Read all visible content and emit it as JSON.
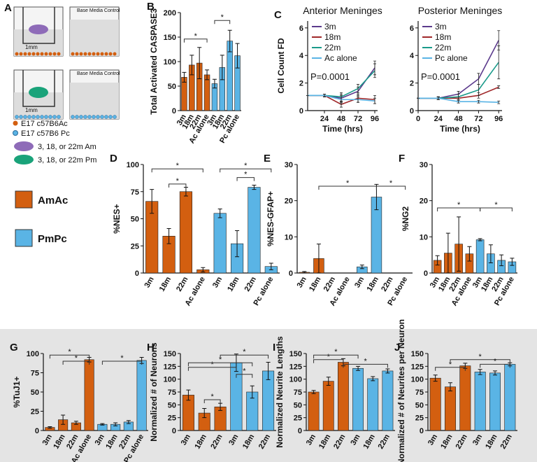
{
  "panel_a": {
    "label": "A",
    "control_1": "Base Media Control",
    "control_2": "Base Media Control",
    "scale_1": "1mm",
    "scale_2": "1mm",
    "key_ac": "E17 c57B6Ac",
    "key_pc": "E17 c57B6 Pc",
    "key_am": "3, 18, or 22m Am",
    "key_pm": "3, 18, or 22m Pm"
  },
  "legend": [
    {
      "name": "AmAc",
      "color": "#d35f10"
    },
    {
      "name": "PmPc",
      "color": "#5ab4e5"
    }
  ],
  "chart_data": [
    {
      "type": "bar",
      "label": "B",
      "ylabel": "Total Activated CASPASE3",
      "categories": [
        "3m",
        "18m",
        "22m",
        "Ac alone",
        "3m",
        "18m",
        "22m",
        "Pc alone"
      ],
      "values": [
        68,
        93,
        97,
        73,
        55,
        88,
        142,
        112
      ],
      "errors": [
        10,
        20,
        32,
        10,
        9,
        25,
        22,
        25
      ],
      "colors": [
        "#d35f10",
        "#d35f10",
        "#d35f10",
        "#d35f10",
        "#5ab4e5",
        "#5ab4e5",
        "#5ab4e5",
        "#5ab4e5"
      ],
      "ylim": [
        0,
        200
      ],
      "yticks": [
        0,
        50,
        100,
        150,
        200
      ],
      "annotations": [
        "*",
        "*"
      ]
    },
    {
      "type": "line",
      "label": "C",
      "title": "Anterior Meninges",
      "ylabel": "Cell Count FD",
      "xlabel": "Time (hrs)",
      "x": [
        0,
        24,
        48,
        72,
        96
      ],
      "xlim": [
        0,
        100
      ],
      "xticks": [
        24,
        48,
        72,
        96
      ],
      "ylim": [
        0,
        6.5
      ],
      "yticks": [
        0,
        2,
        4,
        6
      ],
      "annotation": "P=0.0001",
      "series": [
        {
          "name": "3m",
          "color": "#5b3a8c",
          "values": [
            1.1,
            1.1,
            0.9,
            1.4,
            3.1
          ],
          "errors": [
            0,
            0.1,
            0.3,
            0.3,
            0.5
          ]
        },
        {
          "name": "18m",
          "color": "#a0282a",
          "values": [
            1.1,
            1.1,
            0.45,
            0.9,
            0.8
          ],
          "errors": [
            0,
            0.1,
            0.2,
            0.3,
            0.3
          ]
        },
        {
          "name": "22m",
          "color": "#1a9a8a",
          "values": [
            1.1,
            1.1,
            1.0,
            1.6,
            2.9
          ],
          "errors": [
            0,
            0.1,
            0.3,
            0.3,
            0.5
          ]
        },
        {
          "name": "Ac alone",
          "color": "#5ab4e5",
          "values": [
            1.1,
            1.1,
            0.8,
            0.8,
            0.7
          ],
          "errors": [
            0,
            0.1,
            0.3,
            0.2,
            0.2
          ]
        }
      ]
    },
    {
      "type": "line",
      "title": "Posterior Meninges",
      "xlabel": "Time (hrs)",
      "x": [
        0,
        24,
        48,
        72,
        96
      ],
      "xlim": [
        0,
        100
      ],
      "xticks": [
        0,
        24,
        48,
        72,
        96
      ],
      "ylim": [
        0,
        6.5
      ],
      "yticks": [
        0,
        2,
        4,
        6
      ],
      "annotation": "P=0.0001",
      "series": [
        {
          "name": "3m",
          "color": "#5b3a8c",
          "values": [
            0.9,
            0.9,
            1.2,
            2.3,
            5.1
          ],
          "errors": [
            0,
            0.1,
            0.2,
            0.4,
            0.7
          ]
        },
        {
          "name": "18m",
          "color": "#a0282a",
          "values": [
            0.9,
            0.9,
            0.9,
            1.1,
            1.7
          ],
          "errors": [
            0,
            0.1,
            0.1,
            0.2,
            0.1
          ]
        },
        {
          "name": "22m",
          "color": "#1a9a8a",
          "values": [
            0.9,
            0.9,
            1.0,
            1.5,
            3.5
          ],
          "errors": [
            0,
            0.1,
            0.2,
            0.4,
            1.2
          ]
        },
        {
          "name": "Pc alone",
          "color": "#5ab4e5",
          "values": [
            0.9,
            0.9,
            0.65,
            0.65,
            0.6
          ],
          "errors": [
            0,
            0.1,
            0.1,
            0.1,
            0.1
          ]
        }
      ]
    },
    {
      "type": "bar",
      "label": "D",
      "ylabel": "%NES+",
      "categories": [
        "3m",
        "18m",
        "22m",
        "Ac alone",
        "3m",
        "18m",
        "22m",
        "Pc alone"
      ],
      "values": [
        66,
        34,
        75,
        3,
        55,
        27,
        79,
        6
      ],
      "errors": [
        11,
        7,
        4,
        2,
        4,
        12,
        2,
        3
      ],
      "colors": [
        "#d35f10",
        "#d35f10",
        "#d35f10",
        "#d35f10",
        "#5ab4e5",
        "#5ab4e5",
        "#5ab4e5",
        "#5ab4e5"
      ],
      "ylim": [
        0,
        100
      ],
      "yticks": [
        0,
        25,
        50,
        75,
        100
      ],
      "annotations": [
        "*",
        "*",
        "*",
        "*"
      ]
    },
    {
      "type": "bar",
      "label": "E",
      "ylabel": "%NES-GFAP+",
      "categories": [
        "3m",
        "18m",
        "22m",
        "Ac alone",
        "3m",
        "18m",
        "22m",
        "Pc alone"
      ],
      "values": [
        0.2,
        4,
        0,
        0,
        1.7,
        21,
        0,
        0
      ],
      "errors": [
        0.2,
        4,
        0,
        0,
        0.5,
        3.5,
        0,
        0
      ],
      "colors": [
        "#d35f10",
        "#d35f10",
        "#d35f10",
        "#d35f10",
        "#5ab4e5",
        "#5ab4e5",
        "#5ab4e5",
        "#5ab4e5"
      ],
      "ylim": [
        0,
        30
      ],
      "yticks": [
        0,
        10,
        20,
        30
      ],
      "annotations": [
        "*",
        "*"
      ]
    },
    {
      "type": "bar",
      "label": "F",
      "ylabel": "%NG2",
      "categories": [
        "3m",
        "18m",
        "22m",
        "Ac alone",
        "3m",
        "18m",
        "22m",
        "Pc alone"
      ],
      "values": [
        3.5,
        5.5,
        8,
        5.3,
        9.2,
        5.3,
        3.5,
        3.1
      ],
      "errors": [
        1.3,
        5.5,
        7.5,
        2,
        0.3,
        2.5,
        1.5,
        1
      ],
      "colors": [
        "#d35f10",
        "#d35f10",
        "#d35f10",
        "#d35f10",
        "#5ab4e5",
        "#5ab4e5",
        "#5ab4e5",
        "#5ab4e5"
      ],
      "ylim": [
        0,
        30
      ],
      "yticks": [
        0,
        10,
        20,
        30
      ],
      "annotations": [
        "*",
        "*"
      ]
    },
    {
      "type": "bar",
      "label": "G",
      "ylabel": "%TuJ1+",
      "categories": [
        "3m",
        "18m",
        "22m",
        "Ac alone",
        "3m",
        "18m",
        "22m",
        "Pc alone"
      ],
      "values": [
        4,
        14,
        10,
        92,
        8,
        8,
        11,
        91
      ],
      "errors": [
        1,
        6,
        2,
        3,
        1,
        2,
        2,
        4
      ],
      "colors": [
        "#d35f10",
        "#d35f10",
        "#d35f10",
        "#d35f10",
        "#5ab4e5",
        "#5ab4e5",
        "#5ab4e5",
        "#5ab4e5"
      ],
      "ylim": [
        0,
        100
      ],
      "yticks": [
        0,
        25,
        50,
        75,
        100
      ],
      "annotations": [
        "*",
        "*",
        "*"
      ]
    },
    {
      "type": "bar",
      "label": "H",
      "ylabel": "Normalized # of Neurons",
      "categories": [
        "3m",
        "18m",
        "22m",
        "3m",
        "18m",
        "22m"
      ],
      "values": [
        69,
        34,
        46,
        132,
        75,
        116
      ],
      "errors": [
        10,
        9,
        7,
        17,
        12,
        17
      ],
      "colors": [
        "#d35f10",
        "#d35f10",
        "#d35f10",
        "#5ab4e5",
        "#5ab4e5",
        "#5ab4e5"
      ],
      "ylim": [
        0,
        150
      ],
      "yticks": [
        0,
        25,
        50,
        75,
        100,
        125,
        150
      ],
      "annotations": [
        "*",
        "*",
        "*",
        "*",
        "*"
      ]
    },
    {
      "type": "bar",
      "label": "I",
      "ylabel": "Normalized Neurite Lengths",
      "categories": [
        "3m",
        "18m",
        "22m",
        "3m",
        "18m",
        "22m"
      ],
      "values": [
        75,
        96,
        133,
        121,
        101,
        116
      ],
      "errors": [
        3,
        8,
        7,
        4,
        4,
        4
      ],
      "colors": [
        "#d35f10",
        "#d35f10",
        "#d35f10",
        "#5ab4e5",
        "#5ab4e5",
        "#5ab4e5"
      ],
      "ylim": [
        0,
        150
      ],
      "yticks": [
        0,
        25,
        50,
        75,
        100,
        125,
        150
      ],
      "annotations": [
        "*",
        "*",
        "*"
      ]
    },
    {
      "type": "bar",
      "label": "J",
      "ylabel": "Normalized # of Neurites per Neuron",
      "categories": [
        "3m",
        "18m",
        "22m",
        "3m",
        "18m",
        "22m"
      ],
      "values": [
        102,
        85,
        126,
        114,
        112,
        129
      ],
      "errors": [
        6,
        8,
        5,
        5,
        4,
        3
      ],
      "colors": [
        "#d35f10",
        "#d35f10",
        "#d35f10",
        "#5ab4e5",
        "#5ab4e5",
        "#5ab4e5"
      ],
      "ylim": [
        0,
        150
      ],
      "yticks": [
        0,
        25,
        50,
        75,
        100,
        125,
        150
      ],
      "annotations": [
        "*",
        "*",
        "*"
      ]
    }
  ]
}
